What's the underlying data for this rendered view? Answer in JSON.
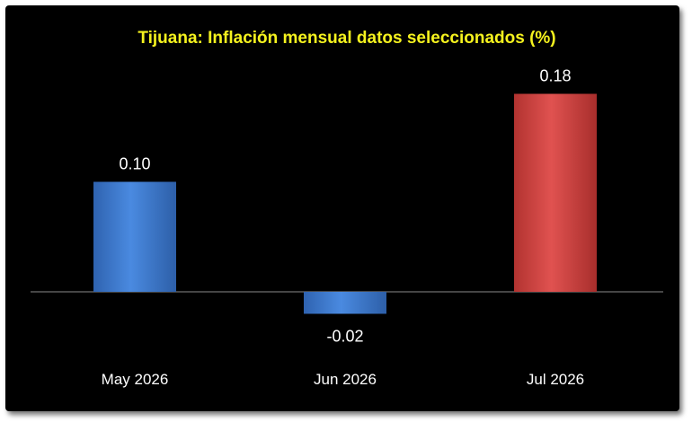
{
  "chart_data": {
    "type": "bar",
    "title": "Tijuana: Inflación mensual datos seleccionados (%)",
    "categories": [
      "May 2026",
      "Jun 2026",
      "Jul 2026"
    ],
    "values": [
      0.1,
      -0.02,
      0.18
    ],
    "value_labels": [
      "0.10",
      "-0.02",
      "0.18"
    ],
    "bar_colors": [
      "#3e7fd6",
      "#3e7fd6",
      "#d84a48"
    ],
    "ylim": [
      -0.04,
      0.2
    ],
    "grid": false,
    "legend": "none",
    "xlabel": "",
    "ylabel": ""
  }
}
